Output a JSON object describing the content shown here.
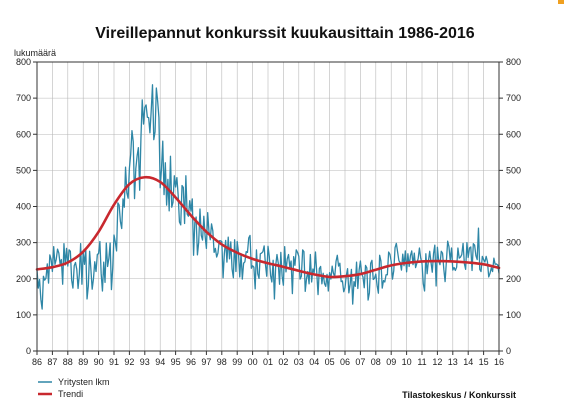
{
  "chart_data": {
    "type": "line",
    "title": "Vireillepannut konkurssit kuukausittain 1986-2016",
    "ylabel": "lukumäärä",
    "ylim": [
      0,
      800
    ],
    "yticks": [
      0,
      100,
      200,
      300,
      400,
      500,
      600,
      700,
      800
    ],
    "xlim": [
      1986,
      2016
    ],
    "xticks": [
      "86",
      "87",
      "88",
      "89",
      "90",
      "91",
      "92",
      "93",
      "94",
      "95",
      "96",
      "97",
      "98",
      "99",
      "00",
      "01",
      "02",
      "03",
      "04",
      "05",
      "06",
      "07",
      "08",
      "09",
      "10",
      "11",
      "12",
      "13",
      "14",
      "15",
      "16"
    ],
    "grid": true,
    "legend_position": "bottom-left",
    "source": "Tilastokeskus / Konkurssit",
    "colors": {
      "monthly": "#2e86a6",
      "trend": "#c8282e",
      "grid": "#b8b8b8"
    },
    "series": [
      {
        "name": "Yritysten lkm",
        "sampling": "monthly",
        "x_start": 1986,
        "values": [
          225,
          174,
          198,
          143,
          116,
          207,
          196,
          202,
          241,
          188,
          266,
          253,
          220,
          289,
          240,
          254,
          282,
          271,
          241,
          253,
          185,
          297,
          238,
          284,
          235,
          280,
          276,
          196,
          174,
          236,
          245,
          226,
          173,
          213,
          297,
          185,
          274,
          240,
          283,
          144,
          180,
          276,
          226,
          171,
          200,
          247,
          220,
          267,
          270,
          303,
          214,
          166,
          246,
          190,
          299,
          234,
          256,
          299,
          170,
          229,
          321,
          302,
          277,
          410,
          404,
          358,
          339,
          421,
          398,
          509,
          438,
          423,
          506,
          544,
          610,
          579,
          422,
          505,
          540,
          563,
          445,
          591,
          695,
          628,
          675,
          681,
          647,
          646,
          604,
          666,
          737,
          585,
          607,
          728,
          693,
          646,
          452,
          504,
          581,
          433,
          521,
          404,
          475,
          388,
          539,
          398,
          412,
          485,
          454,
          480,
          431,
          357,
          349,
          458,
          453,
          353,
          485,
          379,
          373,
          416,
          387,
          421,
          265,
          357,
          371,
          266,
          301,
          393,
          320,
          307,
          373,
          318,
          284,
          383,
          331,
          308,
          352,
          333,
          273,
          284,
          260,
          271,
          305,
          305,
          303,
          203,
          270,
          306,
          246,
          315,
          255,
          302,
          227,
          203,
          308,
          220,
          303,
          272,
          205,
          269,
          199,
          243,
          247,
          275,
          273,
          313,
          320,
          229,
          236,
          232,
          172,
          280,
          214,
          201,
          269,
          271,
          275,
          291,
          240,
          207,
          290,
          262,
          209,
          191,
          251,
          144,
          237,
          267,
          243,
          185,
          273,
          207,
          182,
          289,
          219,
          255,
          267,
          232,
          249,
          159,
          261,
          237,
          280,
          273,
          262,
          199,
          207,
          280,
          275,
          165,
          200,
          220,
          186,
          267,
          191,
          227,
          217,
          274,
          216,
          156,
          228,
          234,
          186,
          215,
          187,
          179,
          212,
          166,
          217,
          199,
          235,
          215,
          206,
          248,
          265,
          235,
          243,
          192,
          194,
          164,
          175,
          208,
          228,
          161,
          184,
          226,
          130,
          192,
          179,
          246,
          173,
          224,
          249,
          214,
          205,
          175,
          237,
          230,
          141,
          161,
          243,
          251,
          198,
          201,
          213,
          182,
          160,
          265,
          249,
          174,
          195,
          191,
          211,
          211,
          274,
          268,
          248,
          199,
          222,
          286,
          298,
          274,
          250,
          245,
          224,
          268,
          236,
          277,
          219,
          269,
          234,
          264,
          277,
          239,
          271,
          231,
          243,
          256,
          285,
          257,
          242,
          186,
          166,
          269,
          214,
          249,
          276,
          246,
          218,
          270,
          293,
          180,
          287,
          249,
          239,
          276,
          271,
          226,
          192,
          248,
          304,
          289,
          250,
          285,
          224,
          231,
          223,
          232,
          285,
          257,
          260,
          267,
          298,
          242,
          226,
          300,
          259,
          285,
          288,
          223,
          297,
          293,
          264,
          253,
          340,
          226,
          220,
          262,
          253,
          246,
          262,
          247,
          205,
          215,
          230,
          220,
          257,
          240,
          241,
          238,
          215
        ]
      },
      {
        "name": "Trendi",
        "sampling": "knots",
        "x": [
          1986,
          1987,
          1988,
          1989,
          1990,
          1991,
          1992,
          1993,
          1994,
          1995,
          1996,
          1997,
          1998,
          1999,
          2000,
          2001,
          2002,
          2003,
          2004,
          2005,
          2006,
          2007,
          2008,
          2009,
          2010,
          2011,
          2012,
          2013,
          2014,
          2015,
          2016
        ],
        "values": [
          226,
          232,
          245,
          275,
          330,
          405,
          462,
          481,
          468,
          425,
          375,
          330,
          295,
          272,
          255,
          243,
          233,
          222,
          212,
          205,
          207,
          213,
          225,
          237,
          244,
          248,
          249,
          248,
          245,
          240,
          230
        ]
      }
    ]
  }
}
